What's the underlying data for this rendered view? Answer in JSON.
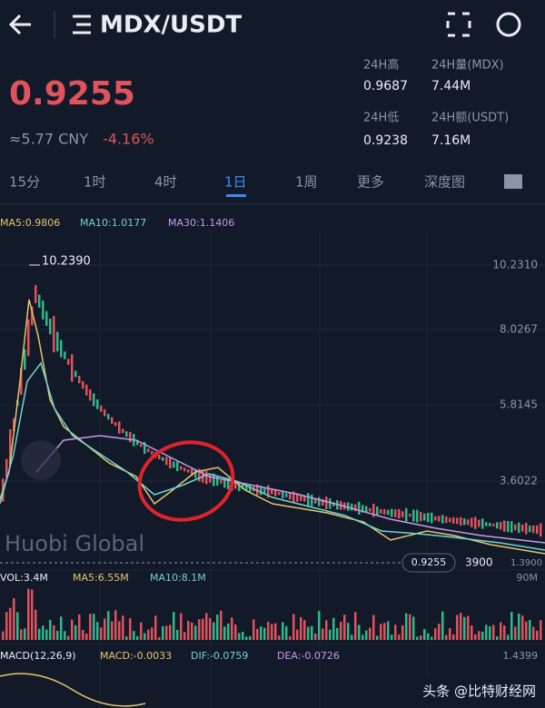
{
  "header": {
    "title": "MDX/USDT"
  },
  "ticker": {
    "price": "0.9255",
    "cny": "≈5.77 CNY",
    "change": "-4.16%",
    "stats": [
      {
        "label": "24H高",
        "value": "0.9687"
      },
      {
        "label": "24H量(MDX)",
        "value": "7.44M"
      },
      {
        "label": "24H低",
        "value": "0.9238"
      },
      {
        "label": "24H额(USDT)",
        "value": "7.16M"
      }
    ]
  },
  "tabs": [
    "15分",
    "1时",
    "4时",
    "1日",
    "1周",
    "更多",
    "深度图"
  ],
  "kline": {
    "ma": [
      "MA5:0.9806",
      "MA10:1.0177",
      "MA30:1.1406"
    ],
    "axis_labels": [
      "10.2310",
      "8.0267",
      "5.8145",
      "3.6022"
    ],
    "high_marker": "10.2390",
    "watermark": "Huobi Global",
    "last_price_tag": "0.9255",
    "low_label": "3900",
    "low_axis_label": "1.3900"
  },
  "volume": {
    "labels": [
      "VOL:3.4M",
      "MA5:6.55M",
      "MA10:8.1M"
    ],
    "axis_max": "90M"
  },
  "macd": {
    "labels": [
      "MACD(12,26,9)",
      "MACD:-0.0033",
      "DIF:-0.0759",
      "DEA:-0.0726"
    ],
    "axis_label": "1.4399"
  },
  "footer": {
    "watermark": "头条 @比特财经网"
  }
}
